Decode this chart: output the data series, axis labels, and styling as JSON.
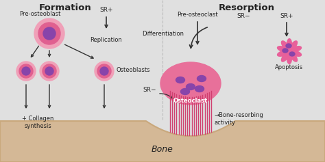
{
  "bg_color": "#e0e0e0",
  "bone_color": "#d4b896",
  "bone_surface_color": "#c9a87c",
  "title_formation": "Formation",
  "title_resorption": "Resorption",
  "cell_outer_color": "#f0a0b8",
  "cell_inner_color": "#8844aa",
  "cell_mid_color": "#e06090",
  "arrow_color": "#333333",
  "text_color": "#222222",
  "label_sr_plus": "SR+",
  "label_sr_minus": "SR−",
  "label_pre_osteoblast": "Pre-osteoblast",
  "label_pre_osteoclast": "Pre-osteoclast",
  "label_replication": "Replication",
  "label_differentiation": "Differentiation",
  "label_osteoblasts": "Osteoblasts",
  "label_osteoclast": "Osteoclast",
  "label_collagen": "+ Collagen\nsynthesis",
  "label_bone_resorbing": "→Bone-resorbing\nactivity",
  "label_apoptosis": "Apoptosis",
  "label_bone": "Bone",
  "apoptosis_color": "#e8609a",
  "ruffled_color": "#e8709a",
  "ruffled_border_color": "#d04070"
}
